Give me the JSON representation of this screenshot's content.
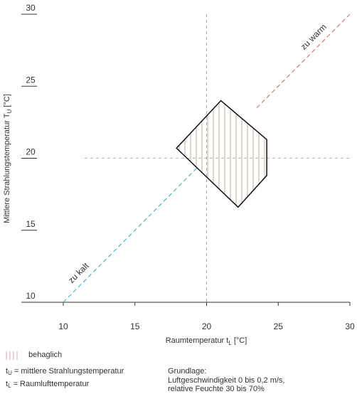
{
  "chart_data": {
    "type": "line",
    "xlabel": "Raumtemperatur t",
    "xlabel_sub": "L",
    "xlabel_unit": " [°C]",
    "ylabel": "Mittlere Strahlungstemperatur T",
    "ylabel_sub": "U",
    "ylabel_unit": " [°C]",
    "xlim": [
      10,
      30
    ],
    "ylim": [
      10,
      30
    ],
    "x_ticks": [
      10,
      15,
      20,
      25,
      30
    ],
    "y_ticks": [
      10,
      15,
      20,
      25,
      30
    ],
    "reference_lines": {
      "x": 20,
      "y": 20
    },
    "series": [
      {
        "name": "zu kalt",
        "color": "#4fb4c8",
        "dashed": true,
        "points": [
          [
            10,
            10
          ],
          [
            19.3,
            19.3
          ]
        ]
      },
      {
        "name": "zu warm",
        "color": "#d27a6e",
        "dashed": true,
        "points": [
          [
            23.5,
            23.5
          ],
          [
            30,
            30
          ]
        ]
      }
    ],
    "comfort_zone": {
      "name": "behaglich",
      "hatch_color": "#d9a7a0",
      "polygon": [
        [
          17.9,
          20.7
        ],
        [
          21.0,
          24.0
        ],
        [
          24.2,
          21.3
        ],
        [
          24.2,
          18.8
        ],
        [
          22.2,
          16.6
        ]
      ]
    }
  },
  "legend": {
    "comfort_label": "behaglich",
    "tu_symbol": "t",
    "tu_sub": "U",
    "tu_text": " = mittlere Strahlungstemperatur",
    "tl_symbol": "t",
    "tl_sub": "L",
    "tl_text": " = Raumlufttemperatur",
    "basis_title": "Grundlage:",
    "basis_line1": "Luftgeschwindigkeit 0 bis 0,2 m/s,",
    "basis_line2": "relative Feuchte 30 bis 70%"
  }
}
